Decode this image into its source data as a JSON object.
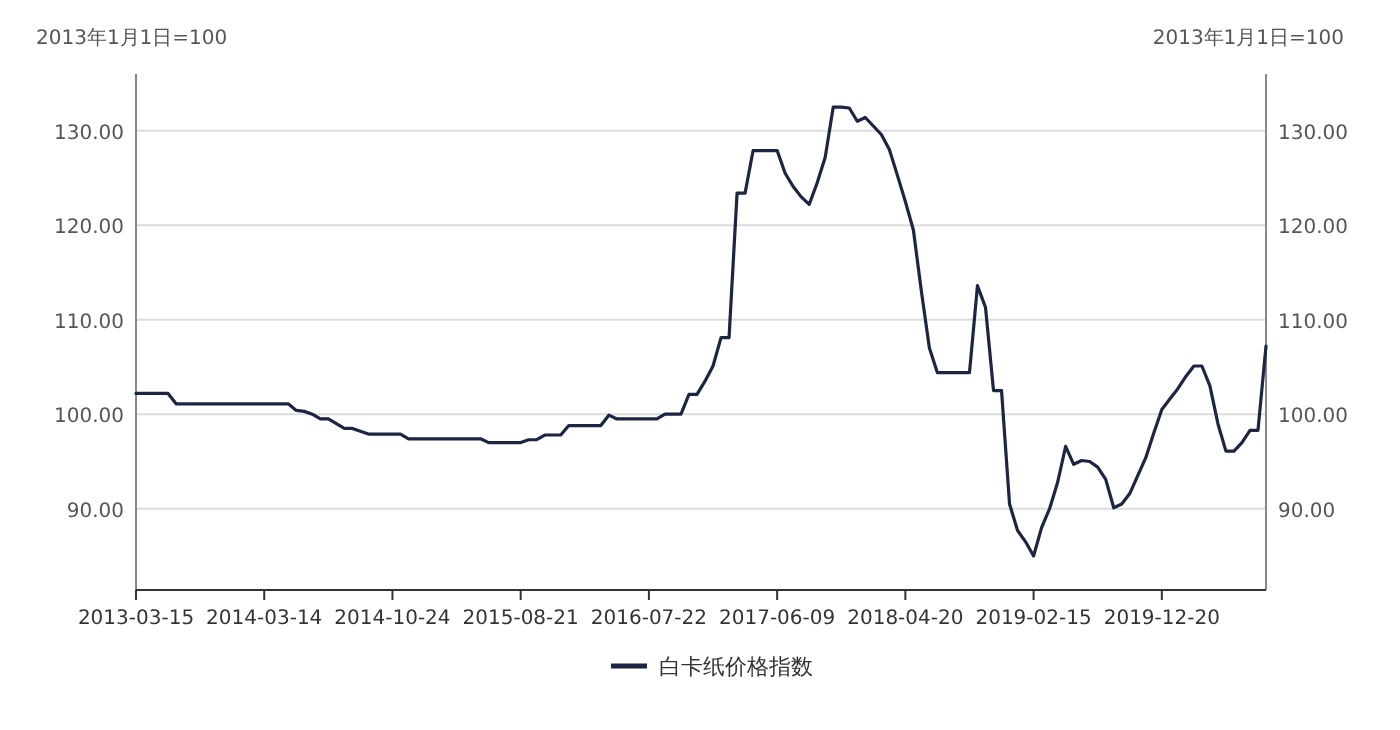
{
  "chart_data": {
    "type": "line",
    "ylabel": "2013年1月1日=100",
    "y2label": "2013年1月1日=100",
    "categories": [
      "2013-03-15",
      null,
      null,
      null,
      null,
      null,
      null,
      null,
      null,
      null,
      null,
      null,
      null,
      null,
      null,
      null,
      "2014-03-14",
      null,
      null,
      null,
      null,
      null,
      null,
      null,
      null,
      null,
      null,
      null,
      null,
      null,
      null,
      null,
      "2014-10-24",
      null,
      null,
      null,
      null,
      null,
      null,
      null,
      null,
      null,
      null,
      null,
      null,
      null,
      null,
      null,
      "2015-08-21",
      null,
      null,
      null,
      null,
      null,
      null,
      null,
      null,
      null,
      null,
      null,
      null,
      null,
      null,
      null,
      "2016-07-22",
      null,
      null,
      null,
      null,
      null,
      null,
      null,
      null,
      null,
      null,
      null,
      null,
      null,
      null,
      null,
      "2017-06-09",
      null,
      null,
      null,
      null,
      null,
      null,
      null,
      null,
      null,
      null,
      null,
      null,
      null,
      null,
      null,
      "2018-04-20",
      null,
      null,
      null,
      null,
      null,
      null,
      null,
      null,
      null,
      null,
      null,
      null,
      null,
      null,
      null,
      "2019-02-15",
      null,
      null,
      null,
      null,
      null,
      null,
      null,
      null,
      null,
      null,
      null,
      null,
      null,
      null,
      null,
      "2019-12-20",
      null,
      null,
      null,
      null,
      null,
      null,
      null,
      null,
      null,
      null,
      null,
      null,
      null
    ],
    "series": [
      {
        "name": "白卡纸价格指数",
        "color": "#1c2541",
        "values": [
          102.2,
          102.2,
          102.2,
          102.2,
          102.2,
          101.1,
          101.1,
          101.1,
          101.1,
          101.1,
          101.1,
          101.1,
          101.1,
          101.1,
          101.1,
          101.1,
          101.1,
          101.1,
          101.1,
          101.1,
          100.4,
          100.3,
          100.0,
          99.5,
          99.5,
          99.0,
          98.5,
          98.5,
          98.2,
          97.9,
          97.9,
          97.9,
          97.9,
          97.9,
          97.4,
          97.4,
          97.4,
          97.4,
          97.4,
          97.4,
          97.4,
          97.4,
          97.4,
          97.4,
          97.0,
          97.0,
          97.0,
          97.0,
          97.0,
          97.3,
          97.3,
          97.8,
          97.8,
          97.8,
          98.8,
          98.8,
          98.8,
          98.8,
          98.8,
          99.9,
          99.5,
          99.5,
          99.5,
          99.5,
          99.5,
          99.5,
          100.0,
          100.0,
          100.0,
          102.1,
          102.1,
          103.5,
          105.1,
          108.1,
          108.1,
          123.4,
          123.4,
          127.9,
          127.9,
          127.9,
          127.9,
          125.5,
          124.1,
          123.0,
          122.2,
          124.5,
          127.2,
          132.5,
          132.5,
          132.4,
          131.0,
          131.4,
          130.5,
          129.6,
          128.0,
          125.3,
          122.5,
          119.5,
          113.0,
          107.0,
          104.4,
          104.4,
          104.4,
          104.4,
          104.4,
          113.6,
          111.3,
          102.5,
          102.5,
          90.5,
          87.7,
          86.5,
          85.0,
          88.0,
          90.0,
          92.8,
          96.6,
          94.7,
          95.1,
          95.0,
          94.4,
          93.1,
          90.1,
          90.5,
          91.6,
          93.5,
          95.4,
          98.0,
          100.5,
          101.6,
          102.7,
          104.0,
          105.1,
          105.1,
          103.0,
          99.0,
          96.1,
          96.1,
          97.0,
          98.3,
          98.3,
          107.2
        ]
      }
    ],
    "ylim": [
      81.4,
      136
    ],
    "yticks": [
      {
        "value": 90,
        "label": "90.00"
      },
      {
        "value": 100,
        "label": "100.00"
      },
      {
        "value": 110,
        "label": "110.00"
      },
      {
        "value": 120,
        "label": "120.00"
      },
      {
        "value": 130,
        "label": "130.00"
      }
    ],
    "y2lim": [
      81.4,
      136
    ],
    "y2ticks": [
      {
        "value": 90,
        "label": "90.00"
      },
      {
        "value": 100,
        "label": "100.00"
      },
      {
        "value": 110,
        "label": "110.00"
      },
      {
        "value": 120,
        "label": "120.00"
      },
      {
        "value": 130,
        "label": "130.00"
      }
    ],
    "grid": "y",
    "legend": "bottom",
    "marker": "none",
    "line_style": "solid"
  }
}
